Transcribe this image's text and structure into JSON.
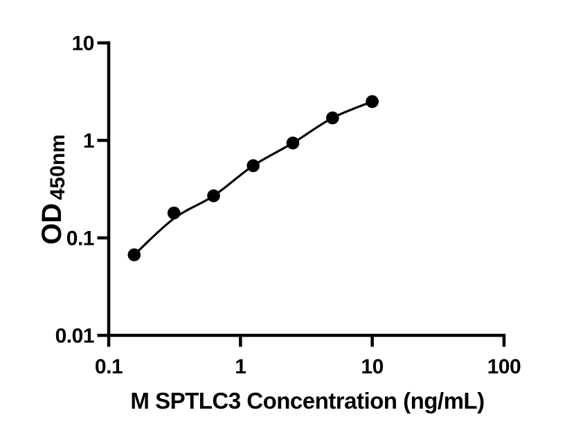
{
  "chart_data": {
    "type": "scatter",
    "title": "",
    "xlabel": "M SPTLC3 Concentration (ng/mL)",
    "ylabel": "OD",
    "ylabel_sub": "450nm",
    "x_scale": "log",
    "y_scale": "log",
    "xlim": [
      0.1,
      100
    ],
    "ylim": [
      0.01,
      10
    ],
    "grid": false,
    "legend": false,
    "x_ticks": [
      {
        "value": 0.1,
        "label": "0.1"
      },
      {
        "value": 1,
        "label": "1"
      },
      {
        "value": 10,
        "label": "10"
      },
      {
        "value": 100,
        "label": "100"
      }
    ],
    "y_ticks": [
      {
        "value": 0.01,
        "label": "0.01"
      },
      {
        "value": 0.1,
        "label": "0.1"
      },
      {
        "value": 1,
        "label": "1"
      },
      {
        "value": 10,
        "label": "10"
      }
    ],
    "points": [
      {
        "x": 0.156,
        "y": 0.067
      },
      {
        "x": 0.3125,
        "y": 0.18
      },
      {
        "x": 0.625,
        "y": 0.27
      },
      {
        "x": 1.25,
        "y": 0.55
      },
      {
        "x": 2.5,
        "y": 0.94
      },
      {
        "x": 5,
        "y": 1.7
      },
      {
        "x": 10,
        "y": 2.5
      }
    ],
    "fit_curve": [
      {
        "x": 0.156,
        "y": 0.067
      },
      {
        "x": 0.3125,
        "y": 0.158
      },
      {
        "x": 0.625,
        "y": 0.27
      },
      {
        "x": 1.25,
        "y": 0.55
      },
      {
        "x": 2.5,
        "y": 0.94
      },
      {
        "x": 5,
        "y": 1.7
      },
      {
        "x": 10,
        "y": 2.5
      }
    ],
    "marker": {
      "shape": "circle",
      "radius_px": 9.3
    },
    "colors": {
      "foreground": "#000000",
      "background": "#ffffff",
      "points": "#000000",
      "line": "#000000"
    }
  }
}
